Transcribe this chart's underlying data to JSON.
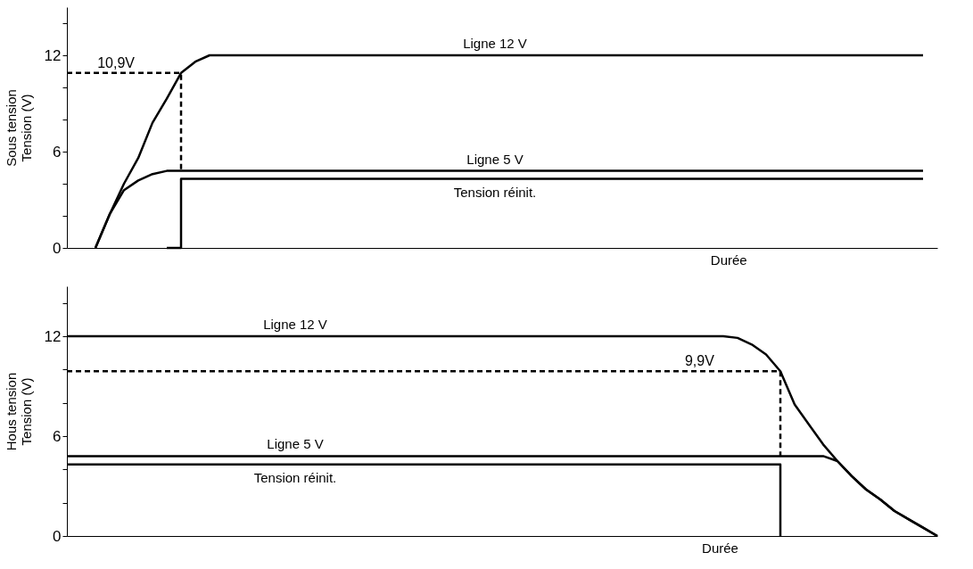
{
  "chart_data": [
    {
      "type": "line",
      "xlabel": "Durée",
      "ylabel": "Sous tension\nTension (V)",
      "tick_labels": "y",
      "grid": false,
      "categories": [
        null,
        null,
        null,
        null,
        null,
        null,
        null,
        null,
        null,
        null,
        null,
        null,
        null,
        null,
        null,
        null,
        null,
        null,
        null,
        null,
        null,
        null,
        null,
        null,
        null,
        null,
        null,
        null,
        null,
        null,
        null,
        null,
        null,
        null,
        null,
        null,
        null,
        null,
        null,
        null,
        null,
        null,
        null,
        null,
        null,
        null,
        null,
        null,
        null,
        null,
        null,
        null,
        null,
        null,
        null,
        null,
        null,
        null,
        null,
        null,
        null,
        null
      ],
      "ylim": [
        0,
        15
      ],
      "yticks": [
        0,
        {
          "value": 2,
          "label": null
        },
        {
          "value": 4,
          "label": null
        },
        6,
        {
          "value": 8,
          "label": null
        },
        {
          "value": 10,
          "label": null
        },
        12,
        {
          "value": 14,
          "label": null
        }
      ],
      "annotations": [
        {
          "text": "10,9V",
          "y": 10.9
        }
      ],
      "series": [
        {
          "name": "Ligne 12 V",
          "type": "line",
          "color": "#000000",
          "values": [
            null,
            null,
            0,
            2.1,
            4.0,
            5.6,
            7.8,
            9.3,
            10.9,
            11.6,
            12,
            12,
            12,
            12,
            12,
            12,
            12,
            12,
            12,
            12,
            12,
            12,
            12,
            12,
            12,
            12,
            12,
            12,
            12,
            12,
            12,
            12,
            12,
            12,
            12,
            12,
            12,
            12,
            12,
            12,
            12,
            12,
            12,
            12,
            12,
            12,
            12,
            12,
            12,
            12,
            12,
            12,
            12,
            12,
            12,
            12,
            12,
            12,
            12,
            12,
            12,
            null
          ]
        },
        {
          "name": "Ligne 5 V",
          "type": "line",
          "color": "#000000",
          "values": [
            null,
            null,
            0,
            2.1,
            3.6,
            4.2,
            4.6,
            4.8,
            4.8,
            4.8,
            4.8,
            4.8,
            4.8,
            4.8,
            4.8,
            4.8,
            4.8,
            4.8,
            4.8,
            4.8,
            4.8,
            4.8,
            4.8,
            4.8,
            4.8,
            4.8,
            4.8,
            4.8,
            4.8,
            4.8,
            4.8,
            4.8,
            4.8,
            4.8,
            4.8,
            4.8,
            4.8,
            4.8,
            4.8,
            4.8,
            4.8,
            4.8,
            4.8,
            4.8,
            4.8,
            4.8,
            4.8,
            4.8,
            4.8,
            4.8,
            4.8,
            4.8,
            4.8,
            4.8,
            4.8,
            4.8,
            4.8,
            4.8,
            4.8,
            4.8,
            4.8,
            null
          ]
        },
        {
          "name": "Tension réinit.",
          "type": "step",
          "color": "#000000",
          "values": [
            null,
            null,
            null,
            null,
            null,
            null,
            null,
            0,
            4.3,
            4.3,
            4.3,
            4.3,
            4.3,
            4.3,
            4.3,
            4.3,
            4.3,
            4.3,
            4.3,
            4.3,
            4.3,
            4.3,
            4.3,
            4.3,
            4.3,
            4.3,
            4.3,
            4.3,
            4.3,
            4.3,
            4.3,
            4.3,
            4.3,
            4.3,
            4.3,
            4.3,
            4.3,
            4.3,
            4.3,
            4.3,
            4.3,
            4.3,
            4.3,
            4.3,
            4.3,
            4.3,
            4.3,
            4.3,
            4.3,
            4.3,
            4.3,
            4.3,
            4.3,
            4.3,
            4.3,
            4.3,
            4.3,
            4.3,
            4.3,
            4.3,
            4.3,
            null
          ]
        },
        {
          "type": "step",
          "line_style": "dashed",
          "color": "#000000",
          "values": [
            10.9,
            10.9,
            10.9,
            10.9,
            10.9,
            10.9,
            10.9,
            10.9,
            4.8,
            null,
            null,
            null,
            null,
            null,
            null,
            null,
            null,
            null,
            null,
            null,
            null,
            null,
            null,
            null,
            null,
            null,
            null,
            null,
            null,
            null,
            null,
            null,
            null,
            null,
            null,
            null,
            null,
            null,
            null,
            null,
            null,
            null,
            null,
            null,
            null,
            null,
            null,
            null,
            null,
            null,
            null,
            null,
            null,
            null,
            null,
            null,
            null,
            null,
            null,
            null,
            null,
            null
          ]
        }
      ]
    },
    {
      "type": "line",
      "xlabel": "Durée",
      "ylabel": "Hous tension\nTension (V)",
      "tick_labels": "y",
      "grid": false,
      "categories": [
        null,
        null,
        null,
        null,
        null,
        null,
        null,
        null,
        null,
        null,
        null,
        null,
        null,
        null,
        null,
        null,
        null,
        null,
        null,
        null,
        null,
        null,
        null,
        null,
        null,
        null,
        null,
        null,
        null,
        null,
        null,
        null,
        null,
        null,
        null,
        null,
        null,
        null,
        null,
        null,
        null,
        null,
        null,
        null,
        null,
        null,
        null,
        null,
        null,
        null,
        null,
        null,
        null,
        null,
        null,
        null,
        null,
        null,
        null,
        null,
        null,
        null
      ],
      "ylim": [
        0,
        15
      ],
      "yticks": [
        0,
        {
          "value": 2,
          "label": null
        },
        {
          "value": 4,
          "label": null
        },
        6,
        {
          "value": 8,
          "label": null
        },
        {
          "value": 10,
          "label": null
        },
        12,
        {
          "value": 14,
          "label": null
        }
      ],
      "annotations": [
        {
          "text": "9,9V",
          "y": 9.9
        }
      ],
      "series": [
        {
          "name": "Ligne 12 V",
          "type": "line",
          "color": "#000000",
          "values": [
            12,
            12,
            12,
            12,
            12,
            12,
            12,
            12,
            12,
            12,
            12,
            12,
            12,
            12,
            12,
            12,
            12,
            12,
            12,
            12,
            12,
            12,
            12,
            12,
            12,
            12,
            12,
            12,
            12,
            12,
            12,
            12,
            12,
            12,
            12,
            12,
            12,
            12,
            12,
            12,
            12,
            12,
            12,
            12,
            12,
            12,
            12,
            11.9,
            11.5,
            10.9,
            9.9,
            7.9,
            6.7,
            5.5,
            4.5,
            3.6,
            2.8,
            2.2,
            1.5,
            1.0,
            0.5,
            0
          ]
        },
        {
          "name": "Ligne 5 V",
          "type": "line",
          "color": "#000000",
          "values": [
            4.8,
            4.8,
            4.8,
            4.8,
            4.8,
            4.8,
            4.8,
            4.8,
            4.8,
            4.8,
            4.8,
            4.8,
            4.8,
            4.8,
            4.8,
            4.8,
            4.8,
            4.8,
            4.8,
            4.8,
            4.8,
            4.8,
            4.8,
            4.8,
            4.8,
            4.8,
            4.8,
            4.8,
            4.8,
            4.8,
            4.8,
            4.8,
            4.8,
            4.8,
            4.8,
            4.8,
            4.8,
            4.8,
            4.8,
            4.8,
            4.8,
            4.8,
            4.8,
            4.8,
            4.8,
            4.8,
            4.8,
            4.8,
            4.8,
            4.8,
            4.8,
            4.8,
            4.8,
            4.8,
            4.5,
            3.6,
            2.8,
            2.2,
            1.5,
            1.0,
            0.5,
            0
          ]
        },
        {
          "name": "Tension réinit.",
          "type": "step",
          "color": "#000000",
          "values": [
            4.3,
            4.3,
            4.3,
            4.3,
            4.3,
            4.3,
            4.3,
            4.3,
            4.3,
            4.3,
            4.3,
            4.3,
            4.3,
            4.3,
            4.3,
            4.3,
            4.3,
            4.3,
            4.3,
            4.3,
            4.3,
            4.3,
            4.3,
            4.3,
            4.3,
            4.3,
            4.3,
            4.3,
            4.3,
            4.3,
            4.3,
            4.3,
            4.3,
            4.3,
            4.3,
            4.3,
            4.3,
            4.3,
            4.3,
            4.3,
            4.3,
            4.3,
            4.3,
            4.3,
            4.3,
            4.3,
            4.3,
            4.3,
            4.3,
            4.3,
            0,
            null,
            null,
            null,
            null,
            null,
            null,
            null,
            null,
            null,
            null,
            null
          ]
        },
        {
          "type": "step",
          "line_style": "dashed",
          "color": "#000000",
          "values": [
            9.9,
            9.9,
            9.9,
            9.9,
            9.9,
            9.9,
            9.9,
            9.9,
            9.9,
            9.9,
            9.9,
            9.9,
            9.9,
            9.9,
            9.9,
            9.9,
            9.9,
            9.9,
            9.9,
            9.9,
            9.9,
            9.9,
            9.9,
            9.9,
            9.9,
            9.9,
            9.9,
            9.9,
            9.9,
            9.9,
            9.9,
            9.9,
            9.9,
            9.9,
            9.9,
            9.9,
            9.9,
            9.9,
            9.9,
            9.9,
            9.9,
            9.9,
            9.9,
            9.9,
            9.9,
            9.9,
            9.9,
            9.9,
            9.9,
            9.9,
            4.8,
            null,
            null,
            null,
            null,
            null,
            null,
            null,
            null,
            null,
            null,
            null
          ]
        }
      ]
    }
  ]
}
